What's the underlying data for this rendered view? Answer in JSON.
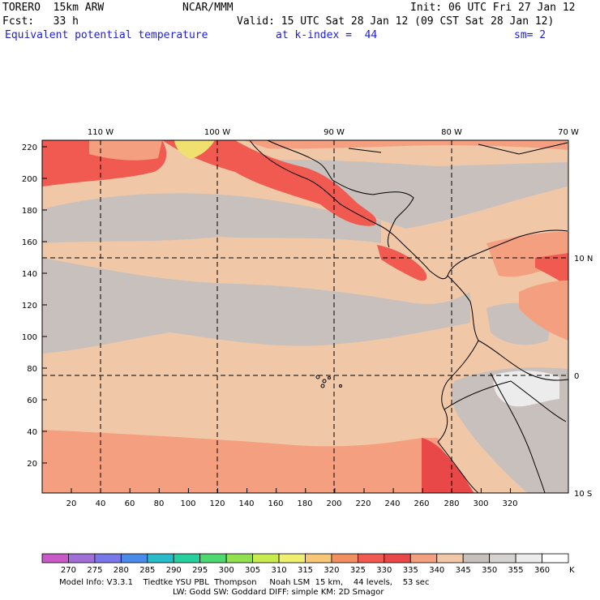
{
  "header": {
    "model": "TORERO  15km ARW",
    "org": "NCAR/MMM",
    "init": "Init: 06 UTC Fri 27 Jan 12",
    "fcst": "Fcst:   33 h",
    "valid": "Valid: 15 UTC Sat 28 Jan 12 (09 CST Sat 28 Jan 12)",
    "field": "Equivalent potential temperature",
    "level": "at k-index =  44",
    "smoothing": "sm= 2"
  },
  "map": {
    "top_lon_labels": [
      "110 W",
      "100 W",
      "90 W",
      "80 W",
      "70 W"
    ],
    "right_lat_labels": [
      "10 N",
      "0",
      "10 S"
    ],
    "y_ticks": [
      "220",
      "200",
      "180",
      "160",
      "140",
      "120",
      "100",
      "80",
      "60",
      "40",
      "20"
    ],
    "x_ticks": [
      "20",
      "40",
      "60",
      "80",
      "100",
      "120",
      "140",
      "160",
      "180",
      "200",
      "220",
      "240",
      "260",
      "280",
      "300",
      "320"
    ]
  },
  "colorbar": {
    "labels": [
      "270",
      "275",
      "280",
      "285",
      "290",
      "295",
      "300",
      "305",
      "310",
      "315",
      "320",
      "325",
      "330",
      "335",
      "340",
      "345",
      "350",
      "355",
      "360"
    ],
    "unit": "K",
    "colors": [
      "#c85ac8",
      "#a070d8",
      "#7878e8",
      "#4a8ae8",
      "#28bcc8",
      "#28d0a0",
      "#50d870",
      "#90e050",
      "#c8ec50",
      "#f0f070",
      "#f8c878",
      "#f09060",
      "#f05a50",
      "#e84848",
      "#f4a080",
      "#f0c8a8",
      "#c8c0bc",
      "#d6d2d0",
      "#ececec",
      "#ffffff"
    ]
  },
  "footer": {
    "line1": "Model Info: V3.3.1    Tiedtke YSU PBL  Thompson     Noah LSM  15 km,    44 levels,    53 sec",
    "line2": "LW: Godd SW: Goddard DIFF: simple KM: 2D Smagor"
  }
}
